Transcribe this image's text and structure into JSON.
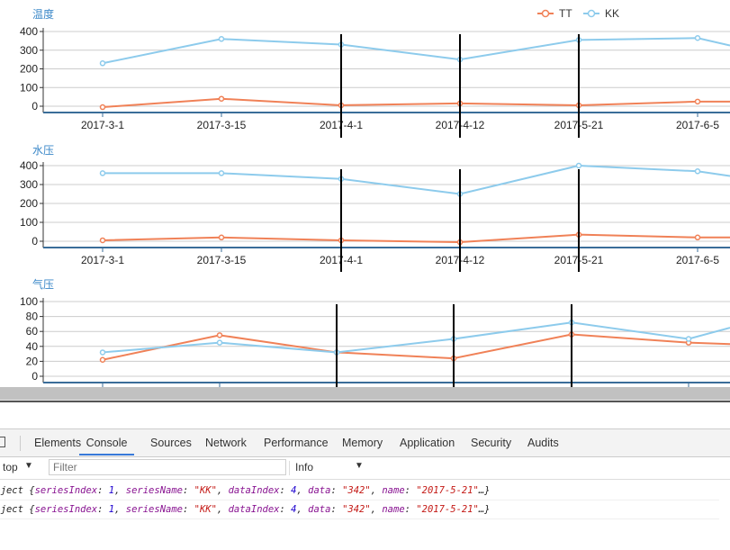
{
  "categories": [
    "2017-3-1",
    "2017-3-15",
    "2017-4-1",
    "2017-4-12",
    "2017-5-21",
    "2017-6-5"
  ],
  "legend": [
    {
      "name": "TT",
      "color": "#f08157"
    },
    {
      "name": "KK",
      "color": "#8dcbec"
    }
  ],
  "chart_data": [
    {
      "type": "line",
      "title": "温度",
      "categories": [
        "2017-3-1",
        "2017-3-15",
        "2017-4-1",
        "2017-4-12",
        "2017-5-21",
        "2017-6-5",
        ""
      ],
      "ylim": [
        0,
        400
      ],
      "yticks": [
        0,
        100,
        200,
        300,
        400
      ],
      "grid": true,
      "legend_position": "top-right",
      "series": [
        {
          "name": "TT",
          "color": "#f08157",
          "values": [
            -5,
            40,
            5,
            15,
            5,
            25,
            25
          ]
        },
        {
          "name": "KK",
          "color": "#8dcbec",
          "values": [
            230,
            360,
            330,
            250,
            355,
            365,
            325
          ]
        }
      ],
      "markers": [
        2,
        3,
        4
      ]
    },
    {
      "type": "line",
      "title": "水压",
      "categories": [
        "2017-3-1",
        "2017-3-15",
        "2017-4-1",
        "2017-4-12",
        "2017-5-21",
        "2017-6-5",
        ""
      ],
      "ylim": [
        0,
        400
      ],
      "yticks": [
        0,
        100,
        200,
        300,
        400
      ],
      "grid": true,
      "series": [
        {
          "name": "TT",
          "color": "#f08157",
          "values": [
            5,
            20,
            5,
            -5,
            35,
            20,
            20
          ]
        },
        {
          "name": "KK",
          "color": "#8dcbec",
          "values": [
            360,
            360,
            330,
            250,
            400,
            370,
            345
          ]
        }
      ],
      "markers": [
        2,
        3,
        4
      ]
    },
    {
      "type": "line",
      "title": "气压",
      "categories": [
        "2017-3-1",
        "2017-3-15",
        "2017-4-1",
        "2017-4-12",
        "2017-5-21",
        "2017-6-5",
        ""
      ],
      "ylim": [
        0,
        100
      ],
      "yticks": [
        0,
        20,
        40,
        60,
        80,
        100
      ],
      "grid": true,
      "series": [
        {
          "name": "TT",
          "color": "#f08157",
          "values": [
            22,
            55,
            32,
            24,
            56,
            45,
            43
          ]
        },
        {
          "name": "KK",
          "color": "#8dcbec",
          "values": [
            32,
            45,
            32,
            50,
            72,
            50,
            65
          ]
        }
      ],
      "markers": [
        2,
        3,
        4
      ]
    }
  ],
  "devtools": {
    "tabs": [
      "Elements",
      "Console",
      "Sources",
      "Network",
      "Performance",
      "Memory",
      "Application",
      "Security",
      "Audits"
    ],
    "active_tab": "Console",
    "context": "top",
    "filter_placeholder": "Filter",
    "level": "Info",
    "logs": [
      {
        "prefix": "Object {",
        "k1": "seriesIndex",
        "v1": "1",
        "k2": "seriesName",
        "v2": "\"KK\"",
        "k3": "dataIndex",
        "v3": "4",
        "k4": "data",
        "v4": "\"342\"",
        "k5": "name",
        "v5": "\"2017-5-21\"",
        "suffix": "…}"
      },
      {
        "prefix": "Object {",
        "k1": "seriesIndex",
        "v1": "1",
        "k2": "seriesName",
        "v2": "\"KK\"",
        "k3": "dataIndex",
        "v3": "4",
        "k4": "data",
        "v4": "\"342\"",
        "k5": "name",
        "v5": "\"2017-5-21\"",
        "suffix": "…}"
      }
    ]
  },
  "colors": {
    "axis": "#3a6d99",
    "title": "#3a87c8",
    "grid": "#cccccc",
    "marker_line": "#000000"
  }
}
